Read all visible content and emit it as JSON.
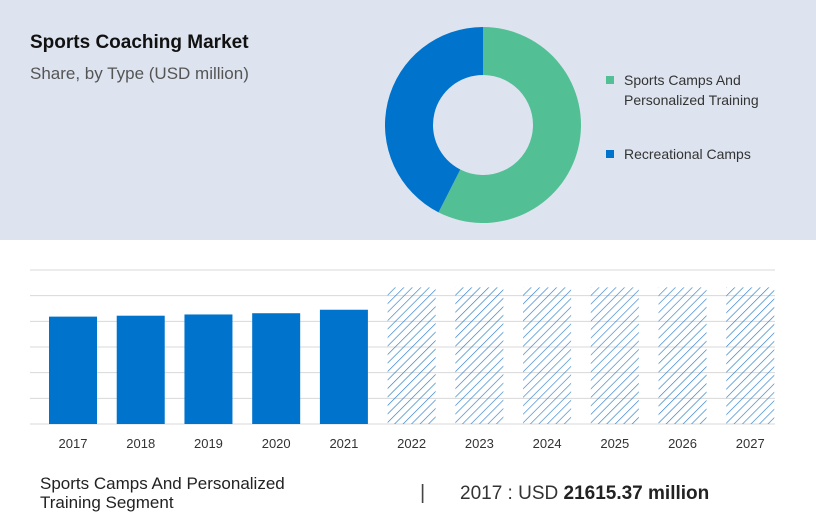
{
  "header": {
    "title": "Sports Coaching Market",
    "subtitle": "Share, by Type (USD million)"
  },
  "colors": {
    "panel": "#dde4ef",
    "green": "#52c094",
    "blue": "#0074cc",
    "hatch": "#2f7fc8",
    "grid": "#d8d8d8"
  },
  "chart_data": [
    {
      "type": "pie",
      "labels": [
        "Sports Camps And Personalized Training",
        "Recreational Camps"
      ],
      "values": [
        57.5,
        42.5
      ],
      "colors": [
        "#52c094",
        "#0074cc"
      ],
      "legend_position": "right"
    },
    {
      "type": "bar",
      "categories": [
        "2017",
        "2018",
        "2019",
        "2020",
        "2021",
        "2022",
        "2023",
        "2024",
        "2025",
        "2026",
        "2027"
      ],
      "values": [
        21615.37,
        21800,
        22050,
        22300,
        23000,
        27500,
        27500,
        27500,
        27500,
        27500,
        27500
      ],
      "forecast_from": "2022",
      "ylim": [
        0,
        31000
      ],
      "grid": true
    }
  ],
  "footer": {
    "segment_label": "Sports Camps And Personalized Training Segment",
    "divider": "|",
    "value_prefix": "2017 : USD ",
    "value_amount": "21615.37 million"
  }
}
